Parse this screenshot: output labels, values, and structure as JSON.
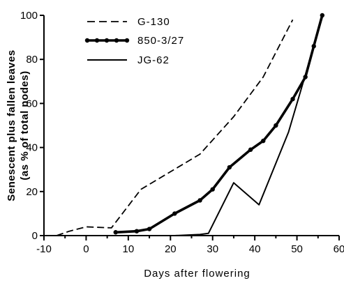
{
  "chart_data": {
    "type": "line",
    "title": "",
    "xlabel": "Days after flowering",
    "ylabel": [
      "Senescent plus fallen leaves",
      "(as % of total nodes)"
    ],
    "xlim": [
      -10,
      60
    ],
    "ylim": [
      0,
      100
    ],
    "xticks": [
      -10,
      0,
      10,
      20,
      30,
      40,
      50,
      60
    ],
    "yticks": [
      0,
      20,
      40,
      60,
      80,
      100
    ],
    "grid": false,
    "legend": "top-left",
    "series": [
      {
        "name": "G-130",
        "style": "dashed",
        "x": [
          -7,
          -4,
          0,
          6,
          13,
          20,
          27,
          35,
          42,
          49
        ],
        "y": [
          0,
          2,
          4,
          3.5,
          21,
          29,
          37,
          54,
          72,
          98
        ]
      },
      {
        "name": "850-3/27",
        "style": "thick-dotted",
        "x": [
          7,
          12,
          15,
          21,
          27,
          30,
          34,
          39,
          42,
          45,
          49,
          52,
          54,
          56
        ],
        "y": [
          1.5,
          2,
          3,
          10,
          16,
          21,
          31,
          39,
          43,
          50,
          62,
          72,
          86,
          100
        ]
      },
      {
        "name": "JG-62",
        "style": "solid",
        "x": [
          7,
          14,
          21,
          27,
          29,
          35,
          41,
          48,
          56
        ],
        "y": [
          0,
          0,
          0,
          0.5,
          1,
          24,
          14,
          47,
          99
        ]
      }
    ]
  }
}
